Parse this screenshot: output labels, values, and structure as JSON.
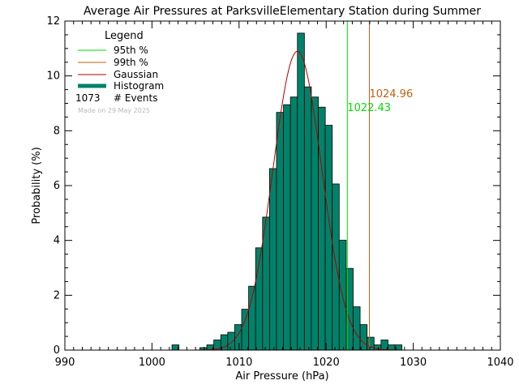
{
  "chart_data": {
    "type": "bar",
    "title": "Average Air Pressures at ParksvilleElementary Station during Summer",
    "xlabel": "Air Pressure (hPa)",
    "ylabel": "Probability (%)",
    "xlim": [
      990,
      1040
    ],
    "ylim": [
      0,
      12
    ],
    "xticks": [
      "990",
      "1000",
      "1010",
      "1020",
      "1030",
      "1040"
    ],
    "yticks": [
      "0",
      "2",
      "4",
      "6",
      "8",
      "10",
      "12"
    ],
    "histogram": {
      "bin_width": 0.8,
      "bin_edges_start": 1002.3,
      "values": [
        0.19,
        0.0,
        0.0,
        0.0,
        0.09,
        0.19,
        0.37,
        0.56,
        0.65,
        0.93,
        1.49,
        2.33,
        3.73,
        4.85,
        6.62,
        8.67,
        8.95,
        9.23,
        11.56,
        9.6,
        9.23,
        8.86,
        8.2,
        6.06,
        4.01,
        2.98,
        1.58,
        0.93,
        0.47,
        0.19,
        0.37,
        0.19,
        0.19
      ],
      "color": "#00826a"
    },
    "gaussian": {
      "mean": 1016.7,
      "sigma": 2.8,
      "peak": 10.9,
      "color": "#b00000"
    },
    "percentile_95": {
      "value": 1022.43,
      "label": "1022.43",
      "color": "#00dd00"
    },
    "percentile_99": {
      "value": 1024.96,
      "label": "1024.96",
      "color": "#c06010"
    },
    "legend": {
      "title": "Legend",
      "items": [
        {
          "label": "95th %",
          "color": "#00dd00",
          "style": "line"
        },
        {
          "label": "99th %",
          "color": "#c06010",
          "style": "line"
        },
        {
          "label": "Gaussian",
          "color": "#b00000",
          "style": "line"
        },
        {
          "label": "Histogram",
          "color": "#00826a",
          "style": "thick"
        }
      ],
      "events_count": "1073",
      "events_label": "# Events",
      "made_on": "Made on 29 May 2025"
    }
  }
}
